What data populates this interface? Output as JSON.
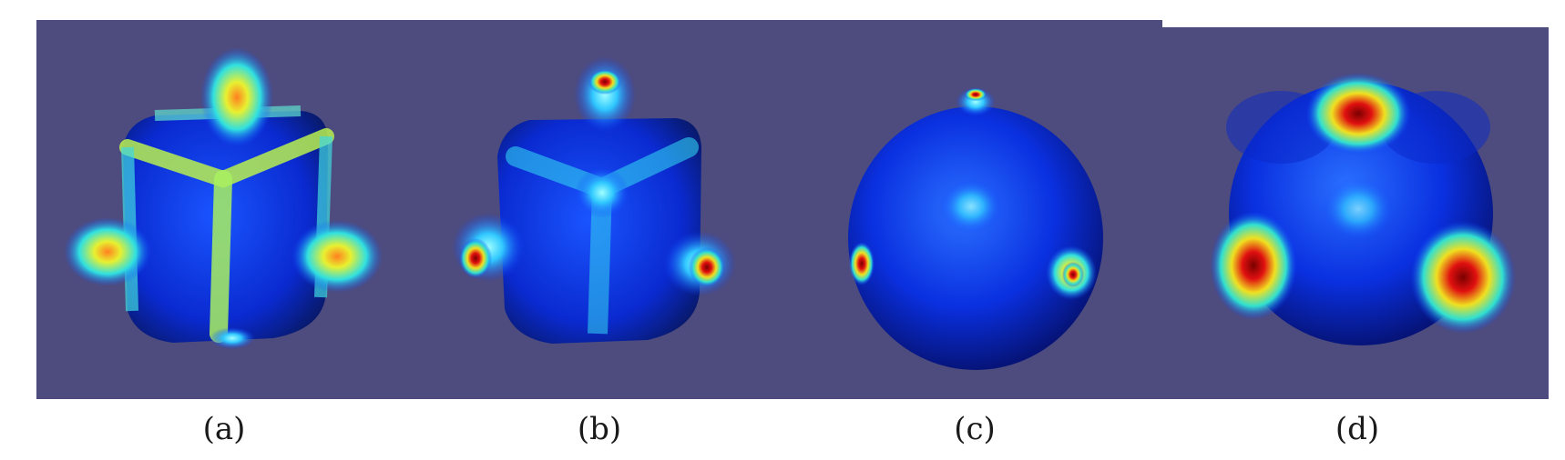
{
  "figure": {
    "background_color": "#4e4c7e",
    "colormap": "jet",
    "panels": [
      {
        "id": "a",
        "shape": "cube-with-spiky-bumps",
        "caption": "(a)"
      },
      {
        "id": "b",
        "shape": "rounded-cube-with-bumps",
        "caption": "(b)"
      },
      {
        "id": "c",
        "shape": "near-sphere-with-small-bumps",
        "caption": "(c)"
      },
      {
        "id": "d",
        "shape": "sphere",
        "caption": "(d)"
      }
    ]
  }
}
